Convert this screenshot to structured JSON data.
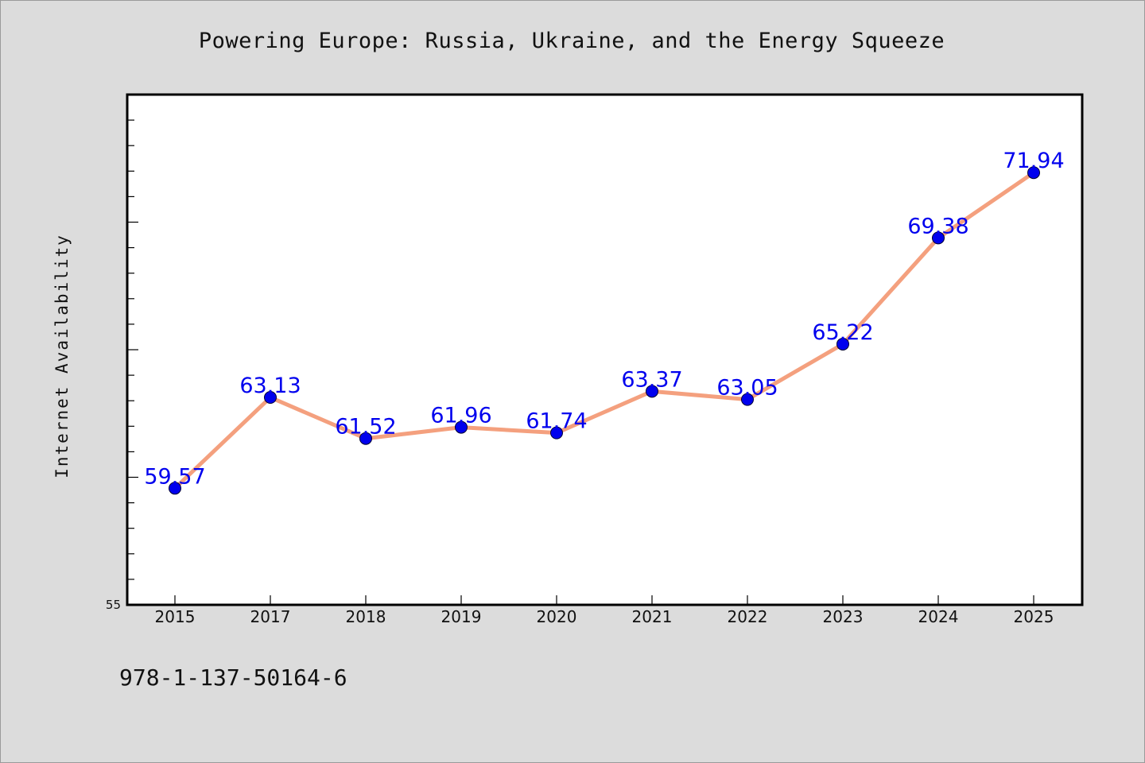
{
  "chart_data": {
    "type": "line",
    "title": "Powering Europe: Russia, Ukraine, and the Energy Squeeze",
    "xlabel": "",
    "ylabel": "Internet Availability",
    "categories": [
      "2015",
      "2017",
      "2018",
      "2019",
      "2020",
      "2021",
      "2022",
      "2023",
      "2024",
      "2025"
    ],
    "series": [
      {
        "values": [
          59.57,
          63.13,
          61.52,
          61.96,
          61.74,
          63.37,
          63.05,
          65.22,
          69.38,
          71.94
        ],
        "labels": [
          "59.57",
          "63.13",
          "61.52",
          "61.96",
          "61.74",
          "63.37",
          "63.05",
          "65.22",
          "69.38",
          "71.94"
        ],
        "line_color": "#f4a07e",
        "marker_color": "#0000ee"
      }
    ],
    "ylim": [
      55,
      75
    ],
    "y_tick_labels": [
      "55"
    ],
    "grid": false,
    "legend": "none",
    "label_color": "#0000ee"
  },
  "footer": {
    "isbn": "978-1-137-50164-6"
  }
}
